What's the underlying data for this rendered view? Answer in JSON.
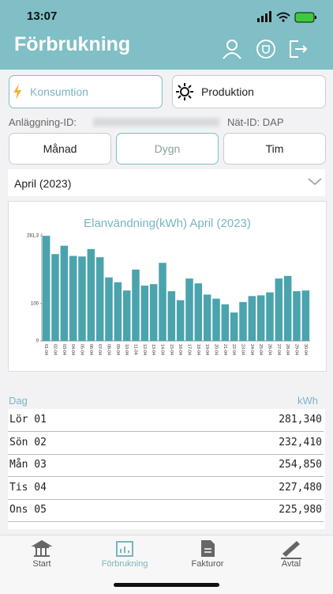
{
  "status": {
    "time": "13:07"
  },
  "header": {
    "title": "Förbrukning"
  },
  "toggle": {
    "consumption": "Konsumtion",
    "production": "Produktion"
  },
  "ids": {
    "facility": "Anläggning-ID:",
    "grid": "Nät-ID: DAP"
  },
  "period_tabs": [
    "Månad",
    "Dygn",
    "Tim"
  ],
  "month_select": "April (2023)",
  "chart_data": {
    "type": "bar",
    "title": "Elanvändning(kWh) April (2023)",
    "categories": [
      "01-04",
      "02-04",
      "03-04",
      "04-04",
      "05-04",
      "06-04",
      "07-04",
      "08-04",
      "09-04",
      "10-04",
      "11-04",
      "12-04",
      "13-04",
      "14-04",
      "15-04",
      "16-04",
      "17-04",
      "18-04",
      "19-04",
      "20-04",
      "21-04",
      "22-04",
      "23-04",
      "24-04",
      "25-04",
      "26-04",
      "27-04",
      "28-04",
      "29-04",
      "30-04"
    ],
    "values": [
      281.34,
      232.41,
      254.85,
      227.48,
      225.98,
      246,
      224,
      170,
      157,
      135,
      191,
      148,
      152,
      209,
      133,
      109,
      167,
      154,
      124,
      113,
      98,
      76,
      104,
      120,
      122,
      130,
      167,
      174,
      133,
      135
    ],
    "color": "#4aa3ad",
    "ylim": [
      0,
      288
    ],
    "yticks": [
      0,
      100,
      {
        "value": 281.3,
        "label": "281,3"
      }
    ]
  },
  "table": {
    "header": [
      "Dag",
      "kWh"
    ],
    "rows": [
      [
        "Lör 01",
        "281,340"
      ],
      [
        "Sön 02",
        "232,410"
      ],
      [
        "Mån 03",
        "254,850"
      ],
      [
        "Tis 04",
        "227,480"
      ],
      [
        "Ons 05",
        "225,980"
      ]
    ]
  },
  "tabbar": [
    "Start",
    "Förbrukning",
    "Fakturor",
    "Avtal"
  ]
}
